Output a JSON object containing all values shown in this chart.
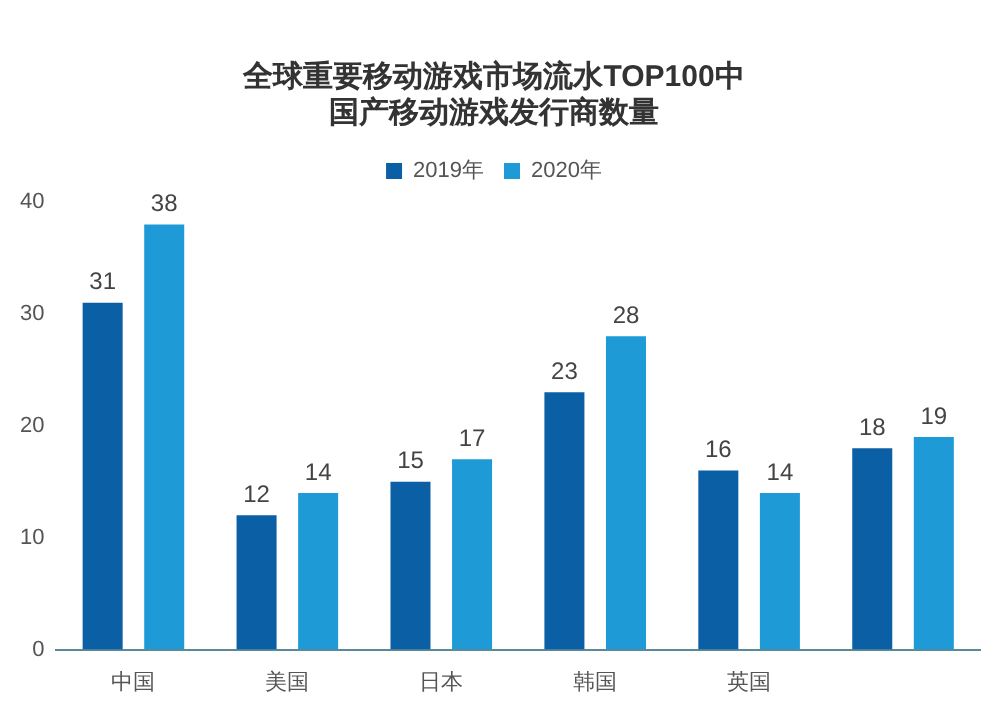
{
  "chart_data": {
    "type": "bar",
    "title": [
      "全球重要移动游戏市场流水TOP100中",
      "国产移动游戏发行商数量"
    ],
    "categories": [
      "中国",
      "美国",
      "日本",
      "韩国",
      "英国",
      null
    ],
    "series": [
      {
        "name": "2019年",
        "color": "#0b5fa5",
        "values": [
          31,
          12,
          15,
          23,
          16,
          18
        ]
      },
      {
        "name": "2020年",
        "color": "#1e9bd7",
        "values": [
          38,
          14,
          17,
          28,
          14,
          19
        ]
      }
    ],
    "ylim": [
      0,
      40
    ],
    "yticks": [
      0,
      10,
      20,
      30,
      40
    ],
    "grid": false,
    "legend": "top",
    "data_labels": true
  }
}
